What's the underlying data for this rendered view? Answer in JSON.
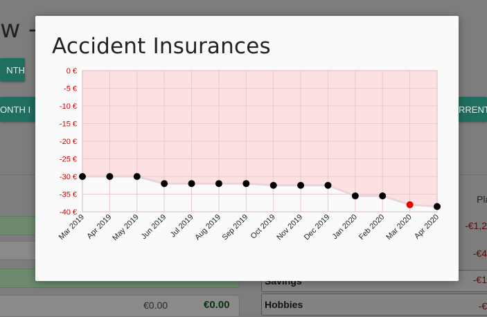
{
  "background": {
    "page_title_fragment": "w -",
    "month_button_label": "NTH",
    "month_tab_label": "ONTH I",
    "current_tab_label": "RRENT",
    "plan_header_fragment": "Pla",
    "rows": [
      {
        "value": "€0.00",
        "bold_value": "€0.00"
      },
      {
        "value": "€0.00",
        "bold_value": "€0.00"
      }
    ],
    "categories": [
      {
        "label": "Savings",
        "amount": "-€1"
      },
      {
        "label": "Hobbies",
        "amount": "-€"
      }
    ],
    "side_amounts": [
      "-€1,2",
      "-€4"
    ]
  },
  "modal": {
    "title": "Accident Insurances"
  },
  "chart_data": {
    "type": "area",
    "x": [
      "Mar 2019",
      "Apr 2019",
      "May 2019",
      "Jun 2019",
      "Jul 2019",
      "Aug 2019",
      "Sep 2019",
      "Oct 2019",
      "Nov 2019",
      "Dec 2019",
      "Jan 2020",
      "Feb 2020",
      "Mar 2020",
      "Apr 2020"
    ],
    "values": [
      -30,
      -30,
      -30,
      -32,
      -32,
      -32,
      -32,
      -32.5,
      -32.5,
      -32.5,
      -35.5,
      -35.5,
      -38,
      -38.5
    ],
    "highlight_index": 12,
    "y_ticks": [
      "0 €",
      "-5 €",
      "-10 €",
      "-15 €",
      "-20 €",
      "-25 €",
      "-30 €",
      "-35 €",
      "-40 €"
    ],
    "ylim": [
      -40,
      0
    ],
    "grid": true,
    "colors": {
      "fill": "#fde0e2",
      "line": "#e6d6d8",
      "point": "#000000",
      "highlight_point": "#ee0000",
      "tick_label": "#cc0000",
      "grid": "#e8c8cb"
    }
  }
}
